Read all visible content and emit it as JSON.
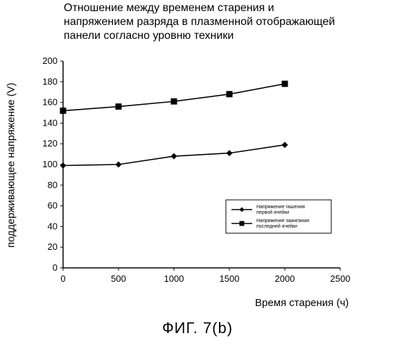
{
  "chart_data": {
    "type": "line",
    "title": [
      "Отношение между временем старения и",
      "напряжением разряда в плазменной отображающей",
      "панели согласно уровню техники"
    ],
    "xlabel": "Время старения (ч)",
    "ylabel": "поддерживающее напряжение (V)",
    "caption": "ФИГ. 7(b)",
    "xlim": [
      0,
      2500
    ],
    "ylim": [
      0,
      200
    ],
    "x_ticks": [
      0,
      500,
      1000,
      1500,
      2000,
      2500
    ],
    "y_ticks": [
      0,
      20,
      40,
      60,
      80,
      100,
      120,
      140,
      160,
      180,
      200
    ],
    "legend_position": "center-right",
    "series": [
      {
        "name": "Напряжение гашения\nпервой ячейки",
        "marker": "diamond",
        "color": "#000000",
        "x": [
          0,
          500,
          1000,
          1500,
          2000
        ],
        "y": [
          99,
          100,
          108,
          111,
          119
        ]
      },
      {
        "name": "Напряжение зажигания\nпоследней ячейки",
        "marker": "square",
        "color": "#000000",
        "x": [
          0,
          500,
          1000,
          1500,
          2000
        ],
        "y": [
          152,
          156,
          161,
          168,
          178
        ]
      }
    ]
  }
}
